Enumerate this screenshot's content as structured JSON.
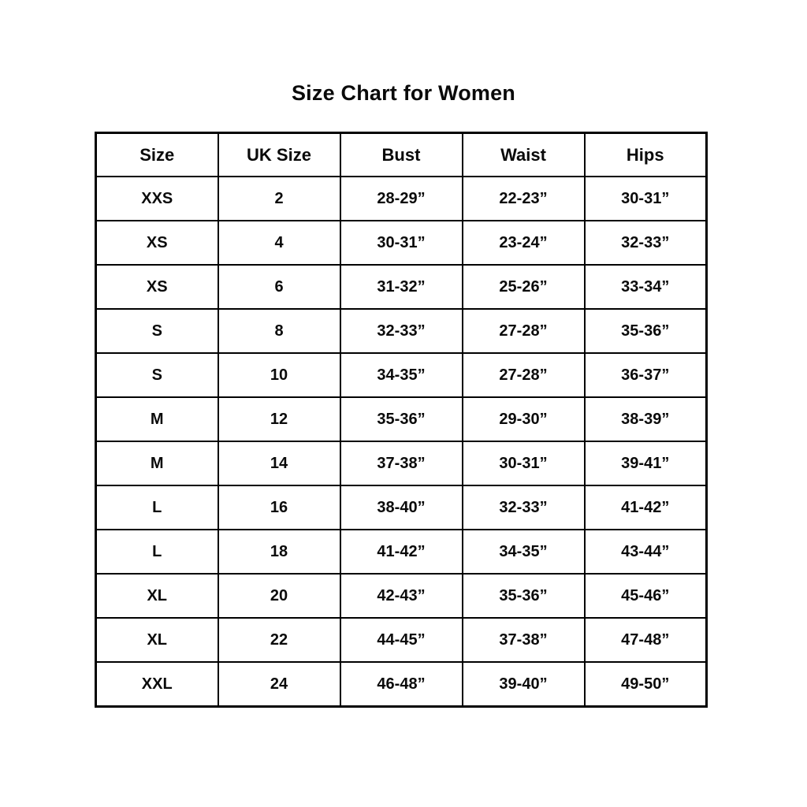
{
  "page": {
    "title": "Size Chart for Women"
  },
  "table": {
    "headers": [
      "Size",
      "UK Size",
      "Bust",
      "Waist",
      "Hips"
    ],
    "rows": [
      [
        "XXS",
        "2",
        "28-29”",
        "22-23”",
        "30-31”"
      ],
      [
        "XS",
        "4",
        "30-31”",
        "23-24”",
        "32-33”"
      ],
      [
        "XS",
        "6",
        "31-32”",
        "25-26”",
        "33-34”"
      ],
      [
        "S",
        "8",
        "32-33”",
        "27-28”",
        "35-36”"
      ],
      [
        "S",
        "10",
        "34-35”",
        "27-28”",
        "36-37”"
      ],
      [
        "M",
        "12",
        "35-36”",
        "29-30”",
        "38-39”"
      ],
      [
        "M",
        "14",
        "37-38”",
        "30-31”",
        "39-41”"
      ],
      [
        "L",
        "16",
        "38-40”",
        "32-33”",
        "41-42”"
      ],
      [
        "L",
        "18",
        "41-42”",
        "34-35”",
        "43-44”"
      ],
      [
        "XL",
        "20",
        "42-43”",
        "35-36”",
        "45-46”"
      ],
      [
        "XL",
        "22",
        "44-45”",
        "37-38”",
        "47-48”"
      ],
      [
        "XXL",
        "24",
        "46-48”",
        "39-40”",
        "49-50”"
      ]
    ]
  },
  "chart_data": {
    "type": "table",
    "title": "Size Chart for Women",
    "columns": [
      "Size",
      "UK Size",
      "Bust",
      "Waist",
      "Hips"
    ],
    "rows": [
      {
        "size": "XXS",
        "uk_size": "2",
        "bust": "28-29”",
        "waist": "22-23”",
        "hips": "30-31”"
      },
      {
        "size": "XS",
        "uk_size": "4",
        "bust": "30-31”",
        "waist": "23-24”",
        "hips": "32-33”"
      },
      {
        "size": "XS",
        "uk_size": "6",
        "bust": "31-32”",
        "waist": "25-26”",
        "hips": "33-34”"
      },
      {
        "size": "S",
        "uk_size": "8",
        "bust": "32-33”",
        "waist": "27-28”",
        "hips": "35-36”"
      },
      {
        "size": "S",
        "uk_size": "10",
        "bust": "34-35”",
        "waist": "27-28”",
        "hips": "36-37”"
      },
      {
        "size": "M",
        "uk_size": "12",
        "bust": "35-36”",
        "waist": "29-30”",
        "hips": "38-39”"
      },
      {
        "size": "M",
        "uk_size": "14",
        "bust": "37-38”",
        "waist": "30-31”",
        "hips": "39-41”"
      },
      {
        "size": "L",
        "uk_size": "16",
        "bust": "38-40”",
        "waist": "32-33”",
        "hips": "41-42”"
      },
      {
        "size": "L",
        "uk_size": "18",
        "bust": "41-42”",
        "waist": "34-35”",
        "hips": "43-44”"
      },
      {
        "size": "XL",
        "uk_size": "20",
        "bust": "42-43”",
        "waist": "35-36”",
        "hips": "45-46”"
      },
      {
        "size": "XL",
        "uk_size": "22",
        "bust": "44-45”",
        "waist": "37-38”",
        "hips": "47-48”"
      },
      {
        "size": "XXL",
        "uk_size": "24",
        "bust": "46-48”",
        "waist": "39-40”",
        "hips": "49-50”"
      }
    ]
  },
  "colors": {
    "background": "#ffffff",
    "text": "#0a0a0a",
    "border": "#000000"
  }
}
